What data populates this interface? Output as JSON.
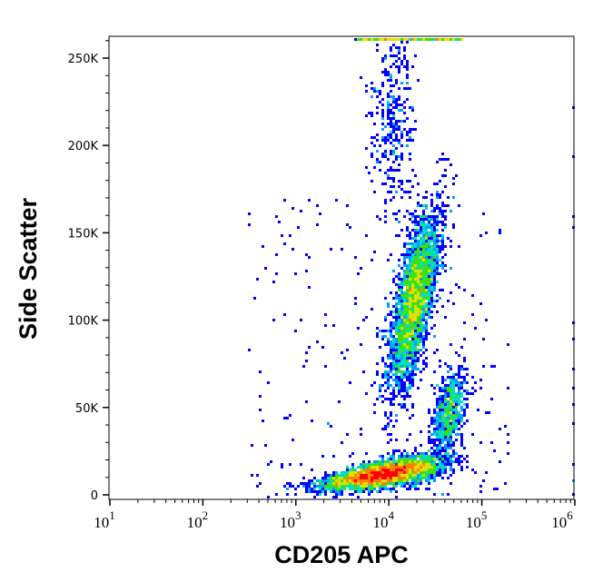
{
  "chart_data": {
    "type": "scatter",
    "subtype": "density-dot-plot",
    "xlabel": "CD205 APC",
    "ylabel": "Side Scatter",
    "x_scale": "log",
    "xlim": [
      10,
      1000000
    ],
    "ylim": [
      -2600,
      262000
    ],
    "x_ticks": [
      {
        "base": "10",
        "exp": "1",
        "value": 10
      },
      {
        "base": "10",
        "exp": "2",
        "value": 100
      },
      {
        "base": "10",
        "exp": "3",
        "value": 1000
      },
      {
        "base": "10",
        "exp": "4",
        "value": 10000
      },
      {
        "base": "10",
        "exp": "5",
        "value": 100000
      },
      {
        "base": "10",
        "exp": "6",
        "value": 1000000
      }
    ],
    "y_ticks": [
      {
        "label": "0",
        "value": 0
      },
      {
        "label": "50K",
        "value": 50000
      },
      {
        "label": "100K",
        "value": 100000
      },
      {
        "label": "150K",
        "value": 150000
      },
      {
        "label": "200K",
        "value": 200000
      },
      {
        "label": "250K",
        "value": 250000
      }
    ],
    "grid": false,
    "colormap": [
      "#0000ff",
      "#00a0ff",
      "#00e0c0",
      "#40e000",
      "#e0e000",
      "#ff8000",
      "#ff0000"
    ],
    "populations": [
      {
        "center_x": 8900,
        "center_y": 12000,
        "spread_x_decades": 0.3,
        "spread_y": 3500,
        "y_per_decade": 9000,
        "relative_count": 4000
      },
      {
        "center_x": 19000,
        "center_y": 112000,
        "spread_x_decades": 0.1,
        "spread_y": 25000,
        "x_tilt_decades": 0.09,
        "relative_count": 3000
      },
      {
        "center_x": 45000,
        "center_y": 48000,
        "spread_x_decades": 0.08,
        "spread_y": 12000,
        "x_tilt_decades": 0.04,
        "relative_count": 700
      },
      {
        "center_x": 11000,
        "center_y": 215000,
        "spread_x_decades": 0.12,
        "spread_y": 30000,
        "relative_count": 350
      },
      {
        "saturated_y": 260000,
        "x_from": 4500,
        "x_to": 63000,
        "relative_count": 300
      }
    ]
  }
}
